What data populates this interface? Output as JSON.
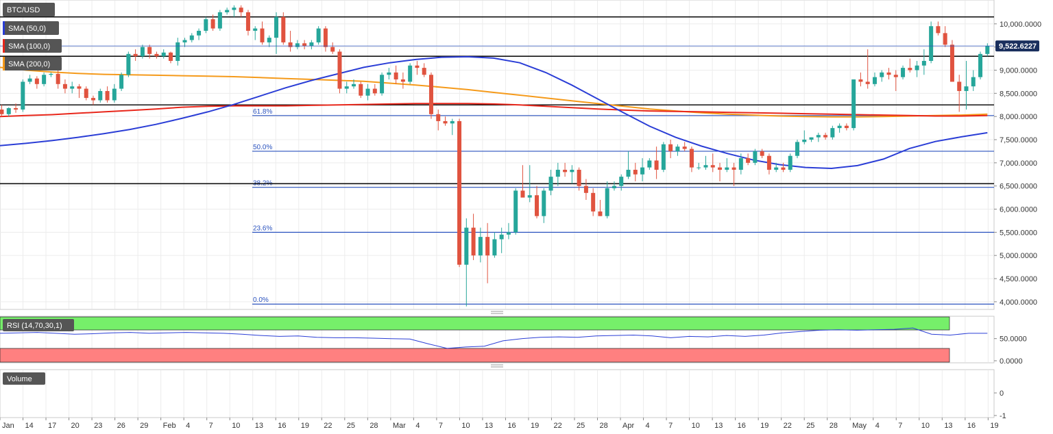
{
  "chart_data": {
    "type": "candlestick",
    "symbol": "BTC/USD",
    "last_price": "9,522.6227",
    "x_labels": [
      "Jan",
      "14",
      "17",
      "20",
      "23",
      "26",
      "29",
      "Feb",
      "4",
      "7",
      "10",
      "13",
      "16",
      "19",
      "22",
      "25",
      "28",
      "Mar",
      "4",
      "7",
      "10",
      "13",
      "16",
      "19",
      "22",
      "25",
      "28",
      "Apr",
      "4",
      "7",
      "10",
      "13",
      "16",
      "19",
      "22",
      "25",
      "28",
      "May",
      "4",
      "7",
      "10",
      "13",
      "16",
      "19"
    ],
    "y_ticks": [
      "10,000.0000",
      "9,500.0000",
      "9,000.0000",
      "8,500.0000",
      "8,000.0000",
      "7,500.0000",
      "7,000.0000",
      "6,500.0000",
      "6,000.0000",
      "5,500.0000",
      "5,000.0000",
      "4,500.0000",
      "4,000.0000"
    ],
    "ylim": [
      3850,
      10500
    ],
    "indicators": [
      "SMA (50,0)",
      "SMA (100,0)",
      "SMA (200,0)"
    ],
    "indicator_colors": [
      "#2a3dd6",
      "#e8261a",
      "#f59a1a"
    ],
    "up_color": "#26a69a",
    "down_color": "#e0533f",
    "candles": [
      {
        "o": 8150,
        "h": 8250,
        "l": 8000,
        "c": 8050
      },
      {
        "o": 8050,
        "h": 8200,
        "l": 8000,
        "c": 8180
      },
      {
        "o": 8180,
        "h": 8280,
        "l": 8080,
        "c": 8150
      },
      {
        "o": 8150,
        "h": 8800,
        "l": 8100,
        "c": 8750
      },
      {
        "o": 8750,
        "h": 8900,
        "l": 8700,
        "c": 8820
      },
      {
        "o": 8820,
        "h": 8870,
        "l": 8600,
        "c": 8700
      },
      {
        "o": 8700,
        "h": 8950,
        "l": 8650,
        "c": 8900
      },
      {
        "o": 8900,
        "h": 8950,
        "l": 8850,
        "c": 8920
      },
      {
        "o": 8920,
        "h": 9050,
        "l": 8600,
        "c": 8700
      },
      {
        "o": 8700,
        "h": 8800,
        "l": 8500,
        "c": 8600
      },
      {
        "o": 8600,
        "h": 8750,
        "l": 8500,
        "c": 8650
      },
      {
        "o": 8650,
        "h": 8700,
        "l": 8400,
        "c": 8600
      },
      {
        "o": 8600,
        "h": 8650,
        "l": 8350,
        "c": 8400
      },
      {
        "o": 8400,
        "h": 8450,
        "l": 8250,
        "c": 8350
      },
      {
        "o": 8350,
        "h": 8600,
        "l": 8300,
        "c": 8550
      },
      {
        "o": 8550,
        "h": 8650,
        "l": 8300,
        "c": 8350
      },
      {
        "o": 8350,
        "h": 8700,
        "l": 8300,
        "c": 8600
      },
      {
        "o": 8600,
        "h": 8950,
        "l": 8550,
        "c": 8900
      },
      {
        "o": 8900,
        "h": 9400,
        "l": 8850,
        "c": 9350
      },
      {
        "o": 9350,
        "h": 9450,
        "l": 9200,
        "c": 9300
      },
      {
        "o": 9300,
        "h": 9550,
        "l": 9250,
        "c": 9500
      },
      {
        "o": 9500,
        "h": 9550,
        "l": 9250,
        "c": 9350
      },
      {
        "o": 9350,
        "h": 9400,
        "l": 9250,
        "c": 9300
      },
      {
        "o": 9300,
        "h": 9450,
        "l": 9250,
        "c": 9380
      },
      {
        "o": 9380,
        "h": 9400,
        "l": 9150,
        "c": 9200
      },
      {
        "o": 9200,
        "h": 9700,
        "l": 9100,
        "c": 9600
      },
      {
        "o": 9600,
        "h": 9700,
        "l": 9500,
        "c": 9650
      },
      {
        "o": 9650,
        "h": 9800,
        "l": 9600,
        "c": 9750
      },
      {
        "o": 9750,
        "h": 9900,
        "l": 9650,
        "c": 9850
      },
      {
        "o": 9850,
        "h": 10150,
        "l": 9800,
        "c": 10100
      },
      {
        "o": 10100,
        "h": 10200,
        "l": 9850,
        "c": 9900
      },
      {
        "o": 9900,
        "h": 10300,
        "l": 9850,
        "c": 10250
      },
      {
        "o": 10250,
        "h": 10350,
        "l": 10200,
        "c": 10300
      },
      {
        "o": 10300,
        "h": 10400,
        "l": 10150,
        "c": 10350
      },
      {
        "o": 10350,
        "h": 10400,
        "l": 10150,
        "c": 10250
      },
      {
        "o": 10250,
        "h": 10300,
        "l": 9750,
        "c": 9850
      },
      {
        "o": 9850,
        "h": 9950,
        "l": 9650,
        "c": 9900
      },
      {
        "o": 9900,
        "h": 10050,
        "l": 9550,
        "c": 9600
      },
      {
        "o": 9600,
        "h": 9750,
        "l": 9500,
        "c": 9700
      },
      {
        "o": 9700,
        "h": 10250,
        "l": 9350,
        "c": 10150
      },
      {
        "o": 10150,
        "h": 10250,
        "l": 9550,
        "c": 9600
      },
      {
        "o": 9600,
        "h": 9850,
        "l": 9400,
        "c": 9500
      },
      {
        "o": 9500,
        "h": 9650,
        "l": 9450,
        "c": 9580
      },
      {
        "o": 9580,
        "h": 9650,
        "l": 9450,
        "c": 9520
      },
      {
        "o": 9520,
        "h": 9650,
        "l": 9450,
        "c": 9600
      },
      {
        "o": 9600,
        "h": 9950,
        "l": 9550,
        "c": 9900
      },
      {
        "o": 9900,
        "h": 9950,
        "l": 9400,
        "c": 9500
      },
      {
        "o": 9500,
        "h": 9600,
        "l": 9350,
        "c": 9400
      },
      {
        "o": 9400,
        "h": 9450,
        "l": 8500,
        "c": 8600
      },
      {
        "o": 8600,
        "h": 8750,
        "l": 8500,
        "c": 8650
      },
      {
        "o": 8650,
        "h": 8800,
        "l": 8600,
        "c": 8700
      },
      {
        "o": 8700,
        "h": 8750,
        "l": 8400,
        "c": 8450
      },
      {
        "o": 8450,
        "h": 8700,
        "l": 8350,
        "c": 8600
      },
      {
        "o": 8600,
        "h": 8700,
        "l": 8450,
        "c": 8500
      },
      {
        "o": 8500,
        "h": 8950,
        "l": 8450,
        "c": 8900
      },
      {
        "o": 8900,
        "h": 9050,
        "l": 8800,
        "c": 8950
      },
      {
        "o": 8950,
        "h": 9100,
        "l": 8700,
        "c": 8800
      },
      {
        "o": 8800,
        "h": 8950,
        "l": 8600,
        "c": 8750
      },
      {
        "o": 8750,
        "h": 9150,
        "l": 8700,
        "c": 9100
      },
      {
        "o": 9100,
        "h": 9200,
        "l": 8900,
        "c": 9050
      },
      {
        "o": 9050,
        "h": 9150,
        "l": 8850,
        "c": 8900
      },
      {
        "o": 8900,
        "h": 8950,
        "l": 7950,
        "c": 8050
      },
      {
        "o": 8050,
        "h": 8150,
        "l": 7700,
        "c": 7900
      },
      {
        "o": 7900,
        "h": 8000,
        "l": 7800,
        "c": 7850
      },
      {
        "o": 7850,
        "h": 7950,
        "l": 7600,
        "c": 7900
      },
      {
        "o": 7900,
        "h": 7950,
        "l": 4750,
        "c": 4800
      },
      {
        "o": 4800,
        "h": 5800,
        "l": 3900,
        "c": 5600
      },
      {
        "o": 5600,
        "h": 5900,
        "l": 4900,
        "c": 5000
      },
      {
        "o": 5000,
        "h": 5600,
        "l": 4850,
        "c": 5400
      },
      {
        "o": 5400,
        "h": 5700,
        "l": 4400,
        "c": 5000
      },
      {
        "o": 5000,
        "h": 5500,
        "l": 4950,
        "c": 5350
      },
      {
        "o": 5350,
        "h": 5600,
        "l": 5050,
        "c": 5450
      },
      {
        "o": 5450,
        "h": 5700,
        "l": 5350,
        "c": 5500
      },
      {
        "o": 5500,
        "h": 6450,
        "l": 5450,
        "c": 6400
      },
      {
        "o": 6400,
        "h": 6950,
        "l": 6300,
        "c": 6250
      },
      {
        "o": 6250,
        "h": 6950,
        "l": 6150,
        "c": 6300
      },
      {
        "o": 6300,
        "h": 6500,
        "l": 5800,
        "c": 5850
      },
      {
        "o": 5850,
        "h": 6450,
        "l": 5700,
        "c": 6400
      },
      {
        "o": 6400,
        "h": 6850,
        "l": 6300,
        "c": 6700
      },
      {
        "o": 6700,
        "h": 7000,
        "l": 6500,
        "c": 6850
      },
      {
        "o": 6850,
        "h": 7000,
        "l": 6700,
        "c": 6800
      },
      {
        "o": 6800,
        "h": 6950,
        "l": 6550,
        "c": 6850
      },
      {
        "o": 6850,
        "h": 6900,
        "l": 6400,
        "c": 6500
      },
      {
        "o": 6500,
        "h": 6650,
        "l": 6200,
        "c": 6350
      },
      {
        "o": 6350,
        "h": 6450,
        "l": 5850,
        "c": 5950
      },
      {
        "o": 5950,
        "h": 6200,
        "l": 5850,
        "c": 5850
      },
      {
        "o": 5850,
        "h": 6600,
        "l": 5800,
        "c": 6450
      },
      {
        "o": 6450,
        "h": 6600,
        "l": 6400,
        "c": 6500
      },
      {
        "o": 6500,
        "h": 6750,
        "l": 6400,
        "c": 6700
      },
      {
        "o": 6700,
        "h": 7250,
        "l": 6650,
        "c": 6850
      },
      {
        "o": 6850,
        "h": 7000,
        "l": 6600,
        "c": 6750
      },
      {
        "o": 6750,
        "h": 7100,
        "l": 6600,
        "c": 6900
      },
      {
        "o": 6900,
        "h": 7100,
        "l": 6850,
        "c": 7050
      },
      {
        "o": 7050,
        "h": 7350,
        "l": 6650,
        "c": 6850
      },
      {
        "o": 6850,
        "h": 7450,
        "l": 6800,
        "c": 7400
      },
      {
        "o": 7400,
        "h": 7500,
        "l": 7100,
        "c": 7250
      },
      {
        "o": 7250,
        "h": 7400,
        "l": 7150,
        "c": 7350
      },
      {
        "o": 7350,
        "h": 7450,
        "l": 7250,
        "c": 7300
      },
      {
        "o": 7300,
        "h": 7350,
        "l": 6800,
        "c": 6900
      },
      {
        "o": 6900,
        "h": 7000,
        "l": 6850,
        "c": 6900
      },
      {
        "o": 6900,
        "h": 7150,
        "l": 6850,
        "c": 6950
      },
      {
        "o": 6950,
        "h": 7200,
        "l": 6800,
        "c": 6900
      },
      {
        "o": 6900,
        "h": 7000,
        "l": 6600,
        "c": 6850
      },
      {
        "o": 6850,
        "h": 7100,
        "l": 6800,
        "c": 6900
      },
      {
        "o": 6900,
        "h": 7000,
        "l": 6500,
        "c": 6850
      },
      {
        "o": 6850,
        "h": 7200,
        "l": 6750,
        "c": 7100
      },
      {
        "o": 7100,
        "h": 7200,
        "l": 6950,
        "c": 7000
      },
      {
        "o": 7000,
        "h": 7300,
        "l": 6950,
        "c": 7250
      },
      {
        "o": 7250,
        "h": 7300,
        "l": 7100,
        "c": 7150
      },
      {
        "o": 7150,
        "h": 7200,
        "l": 6750,
        "c": 6850
      },
      {
        "o": 6850,
        "h": 7000,
        "l": 6800,
        "c": 6900
      },
      {
        "o": 6900,
        "h": 7000,
        "l": 6800,
        "c": 6850
      },
      {
        "o": 6850,
        "h": 7200,
        "l": 6800,
        "c": 7150
      },
      {
        "o": 7150,
        "h": 7500,
        "l": 7100,
        "c": 7450
      },
      {
        "o": 7450,
        "h": 7700,
        "l": 7400,
        "c": 7500
      },
      {
        "o": 7500,
        "h": 7550,
        "l": 7450,
        "c": 7550
      },
      {
        "o": 7550,
        "h": 7650,
        "l": 7450,
        "c": 7600
      },
      {
        "o": 7600,
        "h": 7650,
        "l": 7500,
        "c": 7550
      },
      {
        "o": 7550,
        "h": 7800,
        "l": 7500,
        "c": 7750
      },
      {
        "o": 7750,
        "h": 7850,
        "l": 7650,
        "c": 7800
      },
      {
        "o": 7800,
        "h": 7850,
        "l": 7700,
        "c": 7750
      },
      {
        "o": 7750,
        "h": 8800,
        "l": 7700,
        "c": 8800
      },
      {
        "o": 8800,
        "h": 8950,
        "l": 8650,
        "c": 8750
      },
      {
        "o": 8750,
        "h": 9450,
        "l": 8600,
        "c": 8700
      },
      {
        "o": 8700,
        "h": 8950,
        "l": 8650,
        "c": 8850
      },
      {
        "o": 8850,
        "h": 9000,
        "l": 8750,
        "c": 8950
      },
      {
        "o": 8950,
        "h": 9050,
        "l": 8800,
        "c": 8900
      },
      {
        "o": 8900,
        "h": 9000,
        "l": 8550,
        "c": 8850
      },
      {
        "o": 8850,
        "h": 9100,
        "l": 8800,
        "c": 9050
      },
      {
        "o": 9050,
        "h": 9250,
        "l": 8950,
        "c": 9000
      },
      {
        "o": 9000,
        "h": 9200,
        "l": 8850,
        "c": 9100
      },
      {
        "o": 9100,
        "h": 9450,
        "l": 8900,
        "c": 9200
      },
      {
        "o": 9200,
        "h": 10050,
        "l": 9150,
        "c": 9950
      },
      {
        "o": 9950,
        "h": 10050,
        "l": 9750,
        "c": 9800
      },
      {
        "o": 9800,
        "h": 9950,
        "l": 9500,
        "c": 9550
      },
      {
        "o": 9550,
        "h": 9650,
        "l": 8750,
        "c": 8750
      },
      {
        "o": 8750,
        "h": 8900,
        "l": 8100,
        "c": 8550
      },
      {
        "o": 8550,
        "h": 9200,
        "l": 8150,
        "c": 8650
      },
      {
        "o": 8650,
        "h": 9000,
        "l": 8550,
        "c": 8850
      },
      {
        "o": 8850,
        "h": 9400,
        "l": 8800,
        "c": 9350
      },
      {
        "o": 9350,
        "h": 9580,
        "l": 9300,
        "c": 9522
      }
    ],
    "sma50": [
      7370,
      7420,
      7480,
      7550,
      7630,
      7720,
      7830,
      7960,
      8100,
      8260,
      8440,
      8620,
      8780,
      8920,
      9060,
      9160,
      9230,
      9280,
      9290,
      9260,
      9160,
      8950,
      8680,
      8380,
      8080,
      7790,
      7550,
      7360,
      7200,
      7060,
      6960,
      6900,
      6880,
      6940,
      7080,
      7310,
      7460,
      7560,
      7650
    ],
    "sma100": [
      8000,
      8020,
      8040,
      8070,
      8100,
      8130,
      8160,
      8200,
      8220,
      8230,
      8230,
      8230,
      8240,
      8250,
      8260,
      8270,
      8280,
      8280,
      8280,
      8270,
      8250,
      8220,
      8190,
      8160,
      8140,
      8120,
      8110,
      8100,
      8090,
      8080,
      8070,
      8060,
      8050,
      8040,
      8030,
      8020,
      8010,
      8010,
      8020
    ],
    "sma200": [
      9060,
      9000,
      8960,
      8930,
      8910,
      8900,
      8890,
      8880,
      8870,
      8860,
      8840,
      8820,
      8800,
      8780,
      8760,
      8720,
      8680,
      8630,
      8580,
      8520,
      8460,
      8400,
      8340,
      8280,
      8220,
      8160,
      8120,
      8080,
      8050,
      8030,
      8010,
      8000,
      7990,
      7990,
      8000,
      8010,
      8020,
      8030,
      8050
    ],
    "horizontal_levels": [
      10150,
      9300,
      8250,
      6550
    ],
    "fib_levels": [
      {
        "label": "61.8%",
        "value": 8020
      },
      {
        "label": "50.0%",
        "value": 7250
      },
      {
        "label": "38.2%",
        "value": 6470
      },
      {
        "label": "23.6%",
        "value": 5500
      },
      {
        "label": "0.0%",
        "value": 3950
      }
    ]
  },
  "rsi": {
    "label": "RSI (14,70,30,1)",
    "y_ticks": [
      "50.0000",
      "0.0000"
    ],
    "values": [
      62,
      63,
      64,
      62,
      60,
      61,
      63,
      64,
      62,
      63,
      64,
      63,
      62,
      60,
      57,
      55,
      56,
      53,
      52,
      52,
      51,
      50,
      49,
      38,
      28,
      31,
      33,
      45,
      50,
      53,
      54,
      53,
      56,
      57,
      58,
      56,
      52,
      55,
      54,
      57,
      55,
      58,
      63,
      66,
      69,
      70,
      69,
      70,
      71,
      74,
      60,
      58,
      62,
      62
    ],
    "upper_color": "#76ef6a",
    "lower_color": "#ff8080"
  },
  "volume": {
    "label": "Volume",
    "y_ticks": [
      "0",
      "-1"
    ]
  }
}
